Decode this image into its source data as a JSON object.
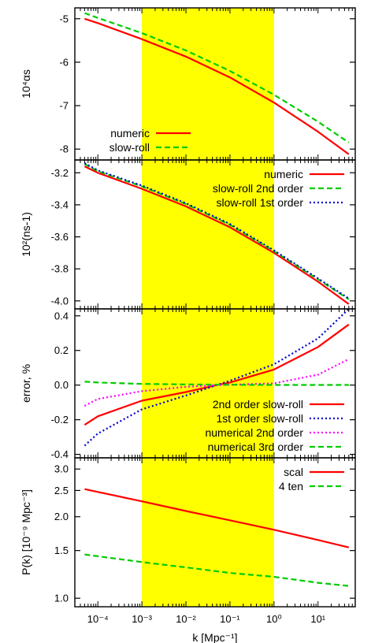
{
  "x_axis": {
    "label": "k [Mpc⁻¹]",
    "scale": "log",
    "range": [
      3e-05,
      70
    ],
    "tick_values": [
      0.0001,
      0.001,
      0.01,
      0.1,
      1,
      10
    ],
    "tick_labels": [
      "10⁻⁴",
      "10⁻³",
      "10⁻²",
      "10⁻¹",
      "10⁰",
      "10¹"
    ]
  },
  "highlight_band": {
    "x_range": [
      0.001,
      1
    ],
    "color": "#ffff00"
  },
  "chart_data": [
    {
      "type": "line",
      "ylabel": "10⁴αs",
      "ylim": [
        -8.25,
        -4.75
      ],
      "y_ticks": [
        -8,
        -7,
        -6,
        -5
      ],
      "y_tick_labels": [
        "-8",
        "-7",
        "-6",
        "-5"
      ],
      "legend": "bottom-left",
      "series": [
        {
          "name": "numeric",
          "color": "#ff0000",
          "dash": "solid",
          "x": [
            5e-05,
            0.0001,
            0.001,
            0.01,
            0.1,
            1,
            10,
            50
          ],
          "y": [
            -5.0,
            -5.1,
            -5.47,
            -5.87,
            -6.35,
            -6.93,
            -7.6,
            -8.12
          ]
        },
        {
          "name": "slow-roll",
          "color": "#00cc00",
          "dash": "dashed",
          "x": [
            5e-05,
            0.0001,
            0.001,
            0.01,
            0.1,
            1,
            10,
            50
          ],
          "y": [
            -4.87,
            -4.98,
            -5.33,
            -5.73,
            -6.2,
            -6.75,
            -7.37,
            -7.85
          ]
        }
      ]
    },
    {
      "type": "line",
      "ylabel": "10²(ns-1)",
      "ylim": [
        -4.05,
        -3.12
      ],
      "y_ticks": [
        -4.0,
        -3.8,
        -3.6,
        -3.4,
        -3.2
      ],
      "y_tick_labels": [
        "-4.0",
        "-3.8",
        "-3.6",
        "-3.4",
        "-3.2"
      ],
      "legend": "top-right",
      "series": [
        {
          "name": "numeric",
          "color": "#ff0000",
          "dash": "solid",
          "x": [
            5e-05,
            0.0001,
            0.001,
            0.01,
            0.1,
            1,
            10,
            50
          ],
          "y": [
            -3.16,
            -3.2,
            -3.3,
            -3.41,
            -3.54,
            -3.7,
            -3.88,
            -4.02
          ]
        },
        {
          "name": "slow-roll 2nd order",
          "color": "#00cc00",
          "dash": "dashed",
          "x": [
            5e-05,
            0.0001,
            0.001,
            0.01,
            0.1,
            1,
            10,
            50
          ],
          "y": [
            -3.145,
            -3.19,
            -3.285,
            -3.395,
            -3.525,
            -3.69,
            -3.865,
            -3.99
          ]
        },
        {
          "name": "slow-roll 1st order",
          "color": "#0000cc",
          "dash": "dotted",
          "x": [
            5e-05,
            0.0001,
            0.001,
            0.01,
            0.1,
            1,
            10,
            50
          ],
          "y": [
            -3.14,
            -3.185,
            -3.28,
            -3.39,
            -3.52,
            -3.685,
            -3.86,
            -3.985
          ]
        }
      ]
    },
    {
      "type": "line",
      "ylabel": "error, %",
      "ylim": [
        -0.42,
        0.44
      ],
      "y_ticks": [
        -0.4,
        -0.2,
        0.0,
        0.2,
        0.4
      ],
      "y_tick_labels": [
        "-0.4",
        "-0.2",
        "0.0",
        "0.2",
        "0.4"
      ],
      "legend": "bottom-right",
      "series": [
        {
          "name": "2nd order slow-roll",
          "color": "#ff0000",
          "dash": "solid",
          "x": [
            5e-05,
            0.0001,
            0.001,
            0.01,
            0.05,
            0.1,
            1,
            10,
            50
          ],
          "y": [
            -0.23,
            -0.18,
            -0.09,
            -0.04,
            0.0,
            0.015,
            0.09,
            0.22,
            0.35
          ]
        },
        {
          "name": "1st order slow-roll",
          "color": "#0000cc",
          "dash": "dotted",
          "x": [
            5e-05,
            0.0001,
            0.001,
            0.01,
            0.05,
            0.1,
            1,
            10,
            50
          ],
          "y": [
            -0.35,
            -0.28,
            -0.14,
            -0.06,
            0.0,
            0.025,
            0.12,
            0.27,
            0.44
          ]
        },
        {
          "name": "numerical 2nd order",
          "color": "#ff00ff",
          "dash": "dotted",
          "x": [
            5e-05,
            0.0001,
            0.001,
            0.01,
            0.05,
            0.1,
            1,
            10,
            50
          ],
          "y": [
            -0.12,
            -0.08,
            -0.035,
            -0.01,
            0.0,
            0.002,
            0.01,
            0.06,
            0.15
          ]
        },
        {
          "name": "numerical 3rd order",
          "color": "#00cc00",
          "dash": "dashed",
          "x": [
            5e-05,
            0.0001,
            0.001,
            0.01,
            0.1,
            1,
            10,
            50
          ],
          "y": [
            0.02,
            0.015,
            0.007,
            0.004,
            0.002,
            0.001,
            0.001,
            0.001
          ]
        }
      ]
    },
    {
      "type": "line",
      "ylabel": "P(k) [10⁻⁹ Mpc⁻³]",
      "yscale": "log",
      "ylim": [
        0.93,
        3.3
      ],
      "y_ticks": [
        1.0,
        1.5,
        2.0,
        2.5,
        3.0
      ],
      "y_tick_labels": [
        "1.0",
        "1.5",
        "2.0",
        "2.5",
        "3.0"
      ],
      "legend": "top-right",
      "series": [
        {
          "name": "scal",
          "color": "#ff0000",
          "dash": "solid",
          "x": [
            5e-05,
            0.001,
            0.01,
            0.1,
            1,
            10,
            50
          ],
          "y": [
            2.53,
            2.28,
            2.1,
            1.94,
            1.79,
            1.64,
            1.54
          ]
        },
        {
          "name": "4 ten",
          "color": "#00cc00",
          "dash": "dashed",
          "x": [
            5e-05,
            0.001,
            0.01,
            0.1,
            1,
            10,
            50
          ],
          "y": [
            1.45,
            1.36,
            1.3,
            1.24,
            1.2,
            1.14,
            1.11
          ]
        }
      ]
    }
  ]
}
